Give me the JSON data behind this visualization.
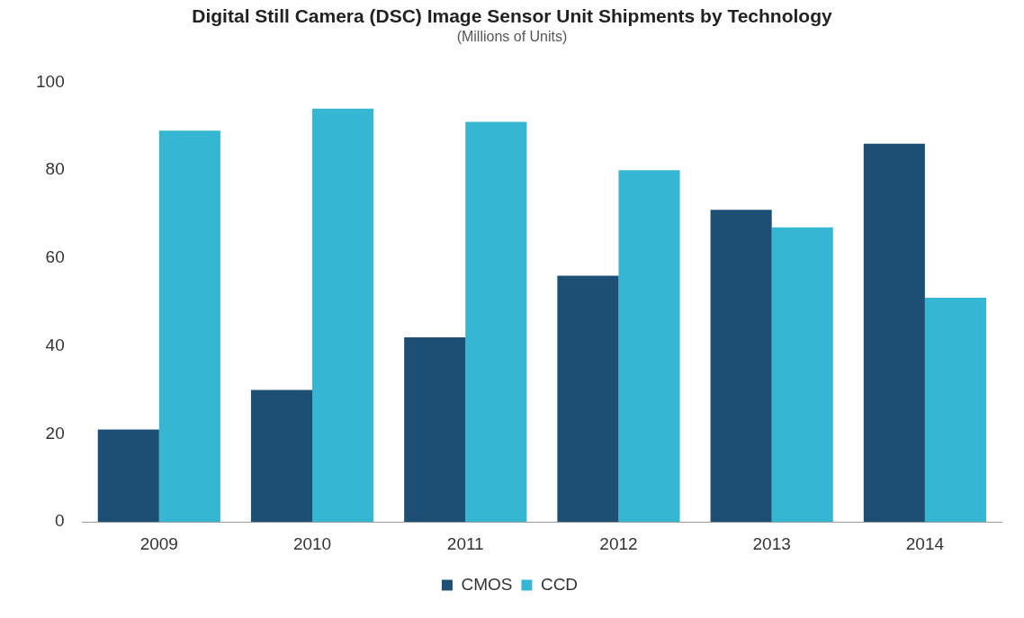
{
  "chart_data": {
    "type": "bar",
    "title": "Digital Still Camera (DSC) Image Sensor Unit Shipments by Technology",
    "subtitle": "(Millions of Units)",
    "categories": [
      "2009",
      "2010",
      "2011",
      "2012",
      "2013",
      "2014"
    ],
    "series": [
      {
        "name": "CMOS",
        "color": "#1d4e74",
        "values": [
          21,
          30,
          42,
          56,
          71,
          86
        ]
      },
      {
        "name": "CCD",
        "color": "#35b6d3",
        "values": [
          89,
          94,
          91,
          80,
          67,
          51
        ]
      }
    ],
    "ylim": [
      0,
      100
    ],
    "yticks": [
      0,
      20,
      40,
      60,
      80,
      100
    ],
    "grid": false,
    "legend": "bottom"
  }
}
